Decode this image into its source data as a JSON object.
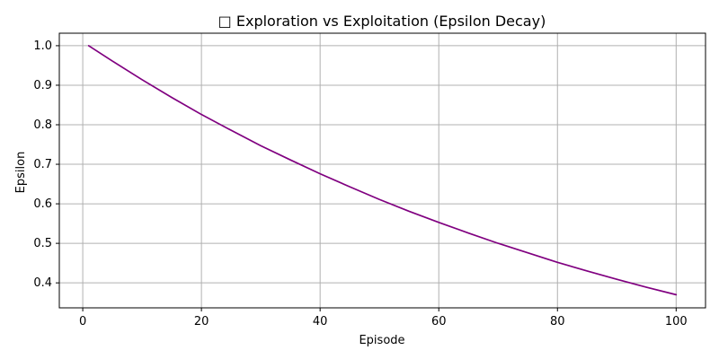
{
  "chart_data": {
    "type": "line",
    "title": "□ Exploration vs Exploitation (Epsilon Decay)",
    "xlabel": "Episode",
    "ylabel": "Epsilon",
    "xlim": [
      -3.95,
      104.95
    ],
    "ylim": [
      0.3368,
      1.0316
    ],
    "xticks": [
      0,
      20,
      40,
      60,
      80,
      100
    ],
    "yticks": [
      0.4,
      0.5,
      0.6,
      0.7,
      0.8,
      0.9,
      1.0
    ],
    "xtick_labels": [
      "0",
      "20",
      "40",
      "60",
      "80",
      "100"
    ],
    "ytick_labels": [
      "0.4",
      "0.5",
      "0.6",
      "0.7",
      "0.8",
      "0.9",
      "1.0"
    ],
    "grid": true,
    "legend": "none",
    "series": [
      {
        "color": "#800080",
        "x": [
          1,
          5,
          10,
          15,
          20,
          25,
          30,
          35,
          40,
          45,
          50,
          55,
          60,
          65,
          70,
          75,
          80,
          85,
          90,
          95,
          100
        ],
        "y": [
          1.0,
          0.961,
          0.914,
          0.869,
          0.826,
          0.786,
          0.747,
          0.711,
          0.676,
          0.643,
          0.611,
          0.581,
          0.553,
          0.526,
          0.5,
          0.476,
          0.452,
          0.43,
          0.409,
          0.389,
          0.37
        ]
      }
    ]
  },
  "colors": {
    "line": "#800080",
    "grid": "#b0b0b0",
    "axes": "#000000",
    "background": "#ffffff"
  }
}
